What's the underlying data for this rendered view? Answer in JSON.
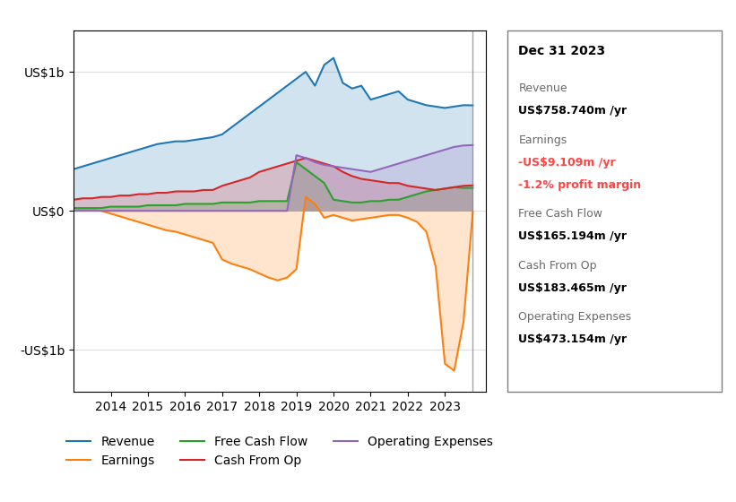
{
  "chart_data": {
    "type": "area",
    "x": [
      2013.0,
      2013.25,
      2013.5,
      2013.75,
      2014.0,
      2014.25,
      2014.5,
      2014.75,
      2015.0,
      2015.25,
      2015.5,
      2015.75,
      2016.0,
      2016.25,
      2016.5,
      2016.75,
      2017.0,
      2017.25,
      2017.5,
      2017.75,
      2018.0,
      2018.25,
      2018.5,
      2018.75,
      2019.0,
      2019.25,
      2019.5,
      2019.75,
      2020.0,
      2020.25,
      2020.5,
      2020.75,
      2021.0,
      2021.25,
      2021.5,
      2021.75,
      2022.0,
      2022.25,
      2022.5,
      2022.75,
      2023.0,
      2023.25,
      2023.5,
      2023.75
    ],
    "series": [
      {
        "name": "Revenue",
        "values": [
          0.3,
          0.32,
          0.34,
          0.36,
          0.38,
          0.4,
          0.42,
          0.44,
          0.46,
          0.48,
          0.49,
          0.5,
          0.5,
          0.51,
          0.52,
          0.53,
          0.55,
          0.6,
          0.65,
          0.7,
          0.75,
          0.8,
          0.85,
          0.9,
          0.95,
          1.0,
          0.9,
          1.05,
          1.1,
          0.92,
          0.88,
          0.9,
          0.8,
          0.82,
          0.84,
          0.86,
          0.8,
          0.78,
          0.76,
          0.75,
          0.74,
          0.75,
          0.76,
          0.759
        ]
      },
      {
        "name": "Earnings",
        "values": [
          0.02,
          0.01,
          0.01,
          0.0,
          -0.02,
          -0.04,
          -0.06,
          -0.08,
          -0.1,
          -0.12,
          -0.14,
          -0.15,
          -0.17,
          -0.19,
          -0.21,
          -0.23,
          -0.35,
          -0.38,
          -0.4,
          -0.42,
          -0.45,
          -0.48,
          -0.5,
          -0.48,
          -0.42,
          0.1,
          0.05,
          -0.05,
          -0.03,
          -0.05,
          -0.07,
          -0.06,
          -0.05,
          -0.04,
          -0.03,
          -0.03,
          -0.05,
          -0.08,
          -0.15,
          -0.4,
          -1.1,
          -1.15,
          -0.8,
          -0.009
        ]
      },
      {
        "name": "Free Cash Flow",
        "values": [
          0.02,
          0.02,
          0.02,
          0.02,
          0.03,
          0.03,
          0.03,
          0.03,
          0.04,
          0.04,
          0.04,
          0.04,
          0.05,
          0.05,
          0.05,
          0.05,
          0.06,
          0.06,
          0.06,
          0.06,
          0.07,
          0.07,
          0.07,
          0.07,
          0.35,
          0.3,
          0.25,
          0.2,
          0.08,
          0.07,
          0.06,
          0.06,
          0.07,
          0.07,
          0.08,
          0.08,
          0.1,
          0.12,
          0.14,
          0.15,
          0.16,
          0.17,
          0.165,
          0.165
        ]
      },
      {
        "name": "Cash From Op",
        "values": [
          0.08,
          0.09,
          0.09,
          0.1,
          0.1,
          0.11,
          0.11,
          0.12,
          0.12,
          0.13,
          0.13,
          0.14,
          0.14,
          0.14,
          0.15,
          0.15,
          0.18,
          0.2,
          0.22,
          0.24,
          0.28,
          0.3,
          0.32,
          0.34,
          0.36,
          0.38,
          0.36,
          0.34,
          0.32,
          0.28,
          0.25,
          0.23,
          0.22,
          0.21,
          0.2,
          0.2,
          0.18,
          0.17,
          0.16,
          0.15,
          0.16,
          0.17,
          0.18,
          0.183
        ]
      },
      {
        "name": "Operating Expenses",
        "values": [
          0.0,
          0.0,
          0.0,
          0.0,
          0.0,
          0.0,
          0.0,
          0.0,
          0.0,
          0.0,
          0.0,
          0.0,
          0.0,
          0.0,
          0.0,
          0.0,
          0.0,
          0.0,
          0.0,
          0.0,
          0.0,
          0.0,
          0.0,
          0.0,
          0.4,
          0.38,
          0.35,
          0.33,
          0.32,
          0.31,
          0.3,
          0.29,
          0.28,
          0.3,
          0.32,
          0.34,
          0.36,
          0.38,
          0.4,
          0.42,
          0.44,
          0.46,
          0.47,
          0.473
        ]
      }
    ],
    "xlim": [
      2013.0,
      2024.1
    ],
    "xticks": [
      2014,
      2015,
      2016,
      2017,
      2018,
      2019,
      2020,
      2021,
      2022,
      2023
    ],
    "ylim": [
      -1.3,
      1.3
    ],
    "yticks": [
      {
        "value": -1,
        "label": "-US$1b"
      },
      {
        "value": 0,
        "label": "US$0"
      },
      {
        "value": 1,
        "label": "US$1b"
      }
    ],
    "grid": "y",
    "legend": "upper center",
    "annotations": [
      {
        "text": "Dec 31 2023"
      },
      {
        "label": "Revenue",
        "text": "US$758.740m /yr"
      },
      {
        "label": "Earnings",
        "text": "-US$9.109m /yr",
        "color": "#ff4444"
      },
      {
        "text": "-1.2% profit margin",
        "color": "#ff4444"
      },
      {
        "label": "Free Cash Flow",
        "text": "US$165.194m /yr"
      },
      {
        "label": "Cash From Op",
        "text": "US$183.465m /yr"
      },
      {
        "label": "Operating Expenses",
        "text": "US$473.154m /yr"
      }
    ]
  }
}
